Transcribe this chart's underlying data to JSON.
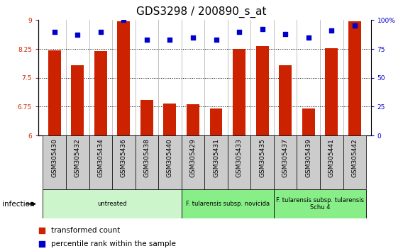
{
  "title": "GDS3298 / 200890_s_at",
  "samples": [
    "GSM305430",
    "GSM305432",
    "GSM305434",
    "GSM305436",
    "GSM305438",
    "GSM305440",
    "GSM305429",
    "GSM305431",
    "GSM305433",
    "GSM305435",
    "GSM305437",
    "GSM305439",
    "GSM305441",
    "GSM305442"
  ],
  "transformed_count": [
    8.21,
    7.82,
    8.2,
    8.97,
    6.93,
    6.83,
    6.82,
    6.71,
    8.25,
    8.32,
    7.82,
    6.71,
    8.27,
    8.97
  ],
  "percentile_rank": [
    90,
    87,
    90,
    100,
    83,
    83,
    85,
    83,
    90,
    92,
    88,
    85,
    91,
    95
  ],
  "bar_color": "#cc2200",
  "marker_color": "#0000cc",
  "ylim_left": [
    6,
    9
  ],
  "ylim_right": [
    0,
    100
  ],
  "yticks_left": [
    6,
    6.75,
    7.5,
    8.25,
    9
  ],
  "yticks_right": [
    0,
    25,
    50,
    75,
    100
  ],
  "ytick_labels_right": [
    "0",
    "25",
    "50",
    "75",
    "100%"
  ],
  "group_info": [
    {
      "start": 0,
      "end": 5,
      "label": "untreated",
      "color": "#ccf5cc"
    },
    {
      "start": 6,
      "end": 9,
      "label": "F. tularensis subsp. novicida",
      "color": "#88ee88"
    },
    {
      "start": 10,
      "end": 13,
      "label": "F. tularensis subsp. tularensis\nSchu 4",
      "color": "#88ee88"
    }
  ],
  "infection_label": "infection",
  "legend_items": [
    {
      "label": "transformed count",
      "color": "#cc2200"
    },
    {
      "label": "percentile rank within the sample",
      "color": "#0000cc"
    }
  ],
  "bg_color": "#ffffff",
  "bar_width": 0.55,
  "tick_label_fontsize": 6.5,
  "title_fontsize": 11,
  "col_sep_color": "#aaaaaa",
  "gray_box_color": "#cccccc"
}
